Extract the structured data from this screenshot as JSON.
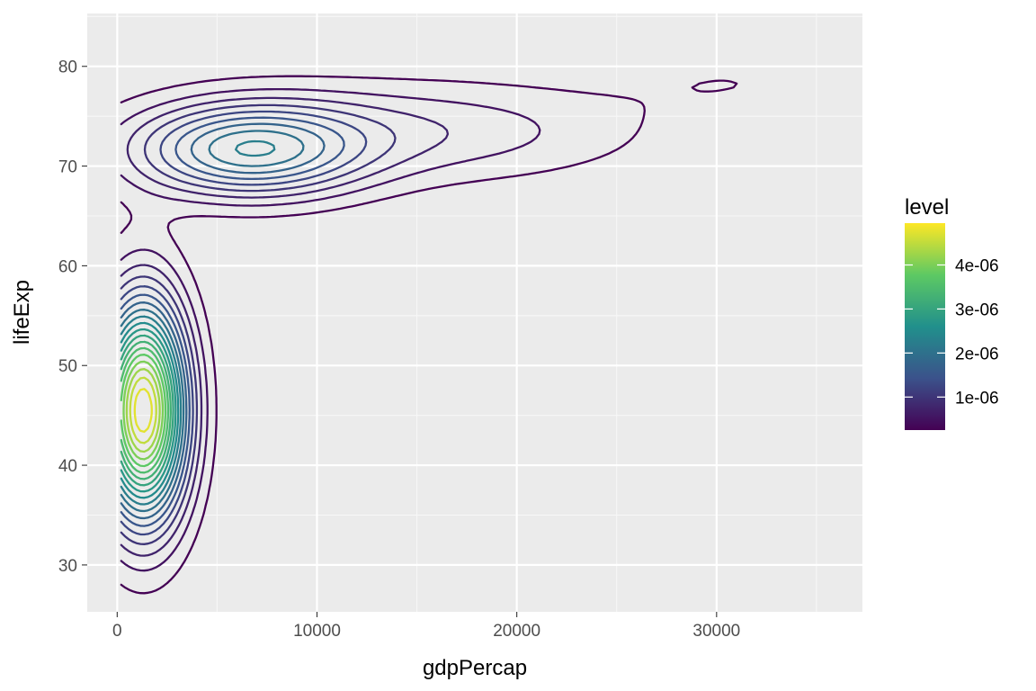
{
  "chart_data": {
    "type": "contour",
    "title": "",
    "xlabel": "gdpPercap",
    "ylabel": "lifeExp",
    "xlim": [
      -1500,
      37300
    ],
    "ylim": [
      25.3,
      85.3
    ],
    "x_ticks": [
      0,
      10000,
      20000,
      30000
    ],
    "x_tick_labels": [
      "0",
      "10000",
      "20000",
      "30000"
    ],
    "y_ticks": [
      30,
      40,
      50,
      60,
      70,
      80
    ],
    "y_tick_labels": [
      "30",
      "40",
      "50",
      "60",
      "70",
      "80"
    ],
    "grid": true,
    "legend": {
      "title": "level",
      "placement": "right",
      "type": "colorbar",
      "colormap": [
        "#440154",
        "#3b528b",
        "#21908c",
        "#5dc963",
        "#fde725"
      ],
      "range": [
        2.5e-07,
        4.95e-06
      ],
      "ticks": [
        1e-06,
        2e-06,
        3e-06,
        4e-06
      ],
      "tick_labels": [
        "1e-06",
        "2e-06",
        "3e-06",
        "4e-06"
      ]
    },
    "kde": {
      "components": [
        {
          "mx": 1300,
          "my": 45.5,
          "sx": 1500,
          "sy": 7.5,
          "w": 1.0
        },
        {
          "mx": 6500,
          "my": 71.5,
          "sx": 4000,
          "sy": 3.2,
          "w": 0.4
        },
        {
          "mx": 15000,
          "my": 73.5,
          "sx": 7500,
          "sy": 3.5,
          "w": 0.14
        },
        {
          "mx": 31000,
          "my": 78.5,
          "sx": 4500,
          "sy": 2.5,
          "w": 0.045
        }
      ],
      "peak": 4.95e-06,
      "levels_start": 2.5e-07,
      "levels_step": 2.5e-07,
      "levels_count": 19
    }
  }
}
